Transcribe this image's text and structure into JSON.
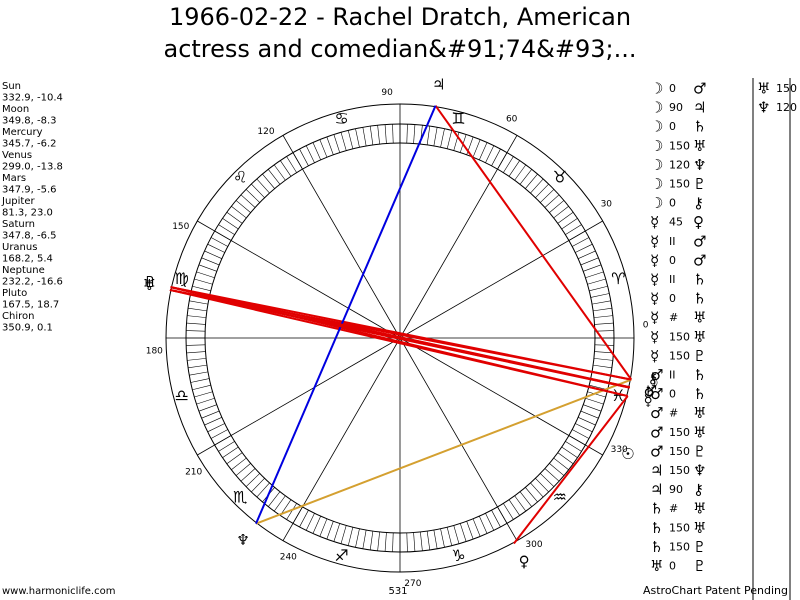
{
  "header": {
    "title": [
      "1966-02-22 - Rachel Dratch, American",
      "actress and comedian&#91;74&#93;..."
    ]
  },
  "planets": [
    {
      "name": "Sun",
      "glyph": "☉",
      "position": "332.9, -10.4"
    },
    {
      "name": "Moon",
      "glyph": "☽",
      "position": "349.8, -8.3"
    },
    {
      "name": "Mercury",
      "glyph": "☿",
      "position": "345.7, -6.2"
    },
    {
      "name": "Venus",
      "glyph": "♀",
      "position": "299.0, -13.8"
    },
    {
      "name": "Mars",
      "glyph": "♂",
      "position": "347.9, -5.6"
    },
    {
      "name": "Jupiter",
      "glyph": "♃",
      "position": "81.3, 23.0"
    },
    {
      "name": "Saturn",
      "glyph": "♄",
      "position": "347.8, -6.5"
    },
    {
      "name": "Uranus",
      "glyph": "♅",
      "position": "168.2, 5.4"
    },
    {
      "name": "Neptune",
      "glyph": "♆",
      "position": "232.2, -16.6"
    },
    {
      "name": "Pluto",
      "glyph": "♇",
      "position": "167.5, 18.7"
    },
    {
      "name": "Chiron",
      "glyph": "⚷",
      "position": "350.9, 0.1"
    }
  ],
  "zodiac": [
    "♈",
    "♉",
    "♊",
    "♋",
    "♌",
    "♍",
    "♎",
    "♏",
    "♐",
    "♑",
    "♒",
    "♓"
  ],
  "degree_labels": [
    0,
    30,
    60,
    90,
    120,
    150,
    180,
    210,
    240,
    270,
    300,
    330
  ],
  "aspects": [
    {
      "p1": "☽",
      "aspect": "0",
      "p2": "♂"
    },
    {
      "p1": "☽",
      "aspect": "90",
      "p2": "♃",
      "line_color": "#e00000"
    },
    {
      "p1": "☽",
      "aspect": "0",
      "p2": "♄"
    },
    {
      "p1": "☽",
      "aspect": "150",
      "p2": "♅",
      "line_color": "#e00000"
    },
    {
      "p1": "☽",
      "aspect": "120",
      "p2": "♆",
      "line_color": "#d4a030"
    },
    {
      "p1": "☽",
      "aspect": "150",
      "p2": "♇",
      "line_color": "#e00000"
    },
    {
      "p1": "☽",
      "aspect": "0",
      "p2": "⚷"
    },
    {
      "p1": "☿",
      "aspect": "45",
      "p2": "♀",
      "line_color": "#e00000"
    },
    {
      "p1": "☿",
      "aspect": "II",
      "p2": "♂"
    },
    {
      "p1": "☿",
      "aspect": "0",
      "p2": "♂"
    },
    {
      "p1": "☿",
      "aspect": "II",
      "p2": "♄"
    },
    {
      "p1": "☿",
      "aspect": "0",
      "p2": "♄"
    },
    {
      "p1": "☿",
      "aspect": "#",
      "p2": "♅"
    },
    {
      "p1": "☿",
      "aspect": "150",
      "p2": "♅",
      "line_color": "#e00000"
    },
    {
      "p1": "☿",
      "aspect": "150",
      "p2": "♇",
      "line_color": "#e00000"
    },
    {
      "p1": "♂",
      "aspect": "II",
      "p2": "♄"
    },
    {
      "p1": "♂",
      "aspect": "0",
      "p2": "♄"
    },
    {
      "p1": "♂",
      "aspect": "#",
      "p2": "♅"
    },
    {
      "p1": "♂",
      "aspect": "150",
      "p2": "♅",
      "line_color": "#e00000"
    },
    {
      "p1": "♂",
      "aspect": "150",
      "p2": "♇",
      "line_color": "#e00000"
    },
    {
      "p1": "♃",
      "aspect": "150",
      "p2": "♆",
      "line_color": "#0000e0"
    },
    {
      "p1": "♃",
      "aspect": "90",
      "p2": "⚷"
    },
    {
      "p1": "♄",
      "aspect": "#",
      "p2": "♅"
    },
    {
      "p1": "♄",
      "aspect": "150",
      "p2": "♅",
      "line_color": "#e00000"
    },
    {
      "p1": "♄",
      "aspect": "150",
      "p2": "♇",
      "line_color": "#e00000"
    },
    {
      "p1": "♅",
      "aspect": "0",
      "p2": "♇"
    },
    {
      "p1": "♅",
      "aspect": "150",
      "p2": "⚷"
    },
    {
      "p1": "♆",
      "aspect": "120",
      "p2": "⚷"
    }
  ],
  "footer": {
    "site": "www.harmoniclife.com",
    "number": "531",
    "notice": "AstroChart Patent Pending"
  }
}
